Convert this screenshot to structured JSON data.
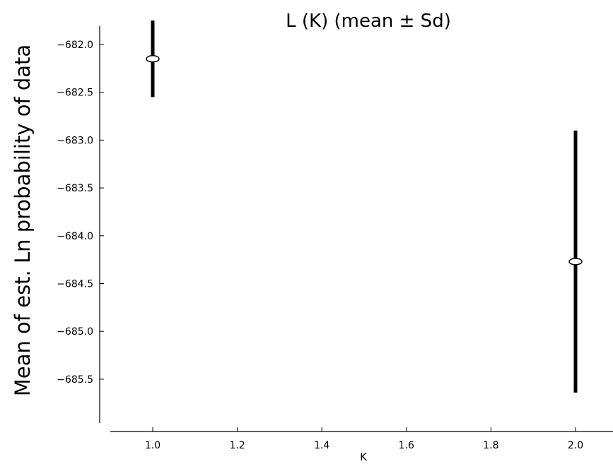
{
  "chart_data": {
    "type": "scatter",
    "title": "L (K) (mean ± Sd)",
    "xlabel": "K",
    "ylabel": "Mean of est. Ln probability of data",
    "xlim": [
      0.9,
      2.05
    ],
    "ylim": [
      -686.1,
      -681.85
    ],
    "x_ticks": [
      "1.0",
      "1.2",
      "1.4",
      "1.6",
      "1.8",
      "2.0"
    ],
    "y_ticks": [
      "−682.0",
      "−682.5",
      "−683.0",
      "−683.5",
      "−684.0",
      "−684.5",
      "−685.0",
      "−685.5"
    ],
    "points": [
      {
        "x": 1.0,
        "mean": -682.15,
        "sd": 0.4
      },
      {
        "x": 2.0,
        "mean": -684.27,
        "sd": 1.37
      }
    ],
    "grid": false,
    "legend": null
  }
}
